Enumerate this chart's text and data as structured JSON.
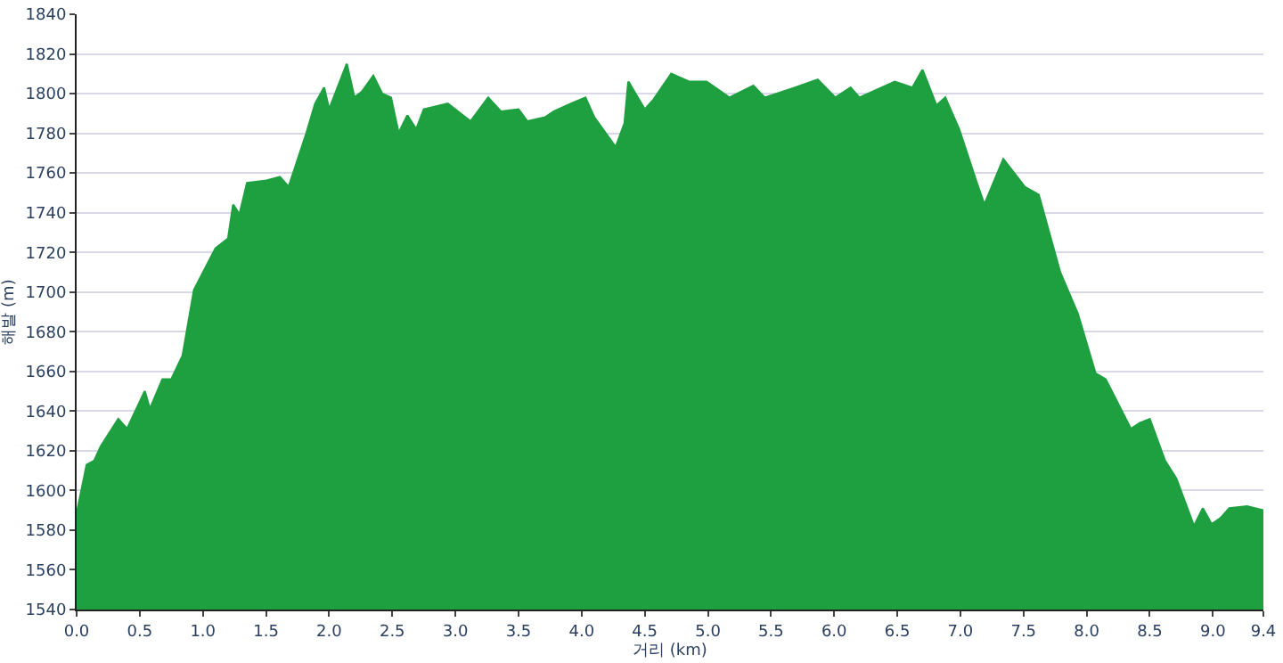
{
  "chart_data": {
    "type": "area",
    "xlabel": "거리 (km)",
    "ylabel": "해발 (m)",
    "x": [
      0,
      0.08,
      0.14,
      0.19,
      0.33,
      0.4,
      0.54,
      0.58,
      0.68,
      0.75,
      0.84,
      0.93,
      1.1,
      1.2,
      1.24,
      1.29,
      1.35,
      1.49,
      1.61,
      1.68,
      1.82,
      1.89,
      1.96,
      2.0,
      2.14,
      2.2,
      2.26,
      2.35,
      2.42,
      2.49,
      2.55,
      2.62,
      2.69,
      2.75,
      2.94,
      3.12,
      3.26,
      3.36,
      3.5,
      3.57,
      3.71,
      3.78,
      3.92,
      4.03,
      4.1,
      4.27,
      4.34,
      4.37,
      4.5,
      4.57,
      4.71,
      4.85,
      4.99,
      5.17,
      5.36,
      5.45,
      5.69,
      5.87,
      6.01,
      6.13,
      6.2,
      6.48,
      6.62,
      6.7,
      6.81,
      6.88,
      6.99,
      7.13,
      7.19,
      7.34,
      7.51,
      7.62,
      7.79,
      7.93,
      8.07,
      8.15,
      8.35,
      8.42,
      8.5,
      8.62,
      8.71,
      8.85,
      8.92,
      8.99,
      9.06,
      9.13,
      9.27,
      9.4
    ],
    "series": [
      {
        "color": "#1fa040",
        "values": [
          1588,
          1613,
          1615,
          1622,
          1636,
          1631,
          1650,
          1641,
          1656,
          1656,
          1668,
          1701,
          1722,
          1727,
          1744,
          1739,
          1755,
          1756,
          1758,
          1753,
          1780,
          1795,
          1803,
          1792,
          1815,
          1798,
          1801,
          1809,
          1800,
          1798,
          1780,
          1789,
          1782,
          1792,
          1795,
          1786,
          1798,
          1791,
          1792,
          1786,
          1788,
          1791,
          1795,
          1798,
          1788,
          1773,
          1785,
          1806,
          1792,
          1797,
          1810,
          1806,
          1806,
          1798,
          1804,
          1798,
          1803,
          1807,
          1798,
          1803,
          1798,
          1806,
          1803,
          1812,
          1794,
          1798,
          1782,
          1755,
          1744,
          1767,
          1753,
          1749,
          1710,
          1689,
          1659,
          1656,
          1631,
          1634,
          1636,
          1615,
          1606,
          1582,
          1591,
          1583,
          1586,
          1591,
          1592,
          1590
        ]
      }
    ],
    "xlim": [
      0,
      9.4
    ],
    "xticks": [
      {
        "value": 0,
        "label": "0.0"
      },
      0.5,
      {
        "value": 1,
        "label": "1.0"
      },
      1.5,
      {
        "value": 2,
        "label": "2.0"
      },
      2.5,
      {
        "value": 3,
        "label": "3.0"
      },
      3.5,
      {
        "value": 4,
        "label": "4.0"
      },
      4.5,
      {
        "value": 5,
        "label": "5.0"
      },
      5.5,
      {
        "value": 6,
        "label": "6.0"
      },
      6.5,
      {
        "value": 7,
        "label": "7.0"
      },
      7.5,
      {
        "value": 8,
        "label": "8.0"
      },
      8.5,
      {
        "value": 9,
        "label": "9.0"
      },
      9.4
    ],
    "ylim": [
      1540,
      1840
    ],
    "yticks": [
      1540,
      1560,
      1580,
      1600,
      1620,
      1640,
      1660,
      1680,
      1700,
      1720,
      1740,
      1760,
      1780,
      1800,
      1820,
      1840
    ],
    "grid": "y"
  }
}
